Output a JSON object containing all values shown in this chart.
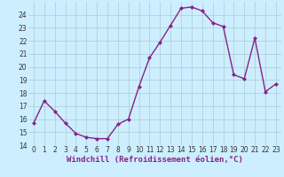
{
  "x": [
    0,
    1,
    2,
    3,
    4,
    5,
    6,
    7,
    8,
    9,
    10,
    11,
    12,
    13,
    14,
    15,
    16,
    17,
    18,
    19,
    20,
    21,
    22,
    23
  ],
  "y": [
    15.7,
    17.4,
    16.6,
    15.7,
    14.9,
    14.6,
    14.5,
    14.5,
    15.6,
    16.0,
    18.5,
    20.7,
    21.9,
    23.2,
    24.5,
    24.6,
    24.3,
    23.4,
    23.1,
    19.4,
    19.1,
    22.2,
    18.1,
    18.7
  ],
  "line_color": "#882288",
  "marker": "D",
  "marker_size": 2,
  "bg_color": "#cceeff",
  "grid_color": "#aacccc",
  "ylim": [
    14,
    25
  ],
  "yticks": [
    14,
    15,
    16,
    17,
    18,
    19,
    20,
    21,
    22,
    23,
    24
  ],
  "xticks": [
    0,
    1,
    2,
    3,
    4,
    5,
    6,
    7,
    8,
    9,
    10,
    11,
    12,
    13,
    14,
    15,
    16,
    17,
    18,
    19,
    20,
    21,
    22,
    23
  ],
  "xlabel": "Windchill (Refroidissement éolien,°C)",
  "tick_fontsize": 5.5,
  "xlabel_fontsize": 6.5,
  "linewidth": 1.0
}
